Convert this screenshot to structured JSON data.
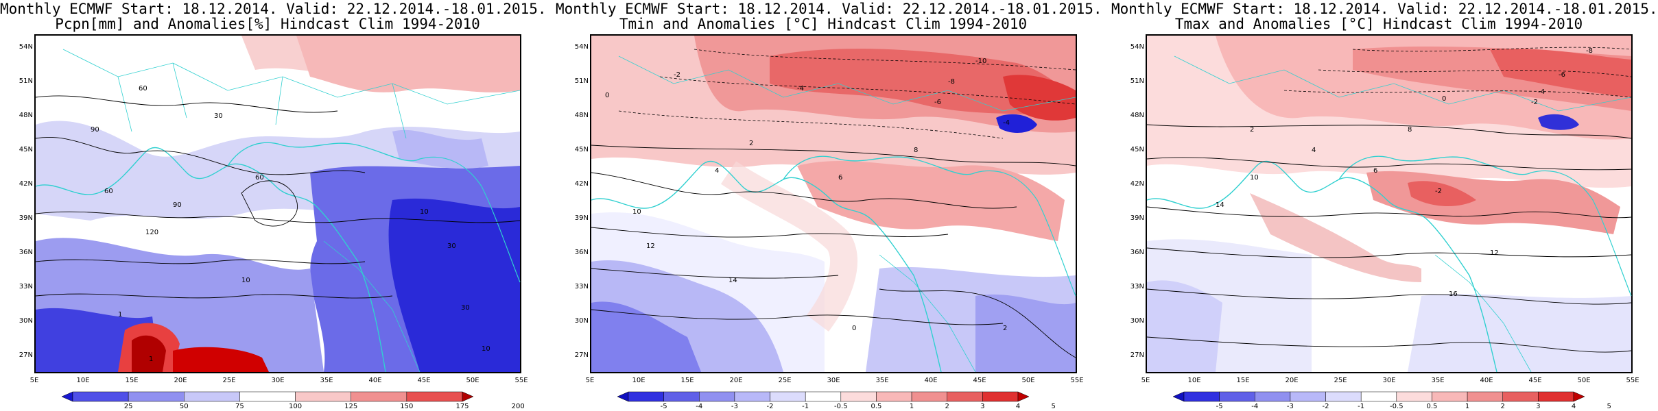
{
  "panels": [
    {
      "title_line1": "Monthly ECMWF Start: 18.12.2014. Valid: 22.12.2014.-18.01.2015.",
      "title_line2": "Pcpn[mm] and Anomalies[%] Hindcast Clim 1994-2010",
      "variable": "precipitation",
      "colorbar_ticks": [
        "25",
        "50",
        "75",
        "100",
        "125",
        "150",
        "175",
        "200"
      ],
      "colorbar_colors": [
        "#1818d0",
        "#5050e8",
        "#9090f0",
        "#c8c8f8",
        "#ffffff",
        "#f8c8c8",
        "#f09090",
        "#e85050",
        "#b00000"
      ],
      "contour_labels": [
        "60",
        "90",
        "30",
        "60",
        "90",
        "120",
        "60",
        "10",
        "30",
        "1",
        "10",
        "30",
        "10",
        "1"
      ]
    },
    {
      "title_line1": "Monthly ECMWF Start: 18.12.2014. Valid: 22.12.2014.-18.01.2015.",
      "title_line2": "Tmin and Anomalies [°C] Hindcast Clim 1994-2010",
      "variable": "tmin",
      "colorbar_ticks": [
        "-5",
        "-4",
        "-3",
        "-2",
        "-1",
        "-0.5",
        "0.5",
        "1",
        "2",
        "3",
        "4",
        "5"
      ],
      "colorbar_colors": [
        "#1010c0",
        "#3030e0",
        "#6060e8",
        "#9090f0",
        "#b8b8f8",
        "#dcdcfc",
        "#ffffff",
        "#fcdcdc",
        "#f8b8b8",
        "#f09090",
        "#e86060",
        "#e03030",
        "#c00000"
      ],
      "contour_labels": [
        "-10",
        "-8",
        "-6",
        "-4",
        "-2",
        "0",
        "2",
        "4",
        "6",
        "8",
        "10",
        "12",
        "14",
        "-4",
        "0",
        "2"
      ]
    },
    {
      "title_line1": "Monthly ECMWF Start: 18.12.2014. Valid: 22.12.2014.-18.01.2015.",
      "title_line2": "Tmax and Anomalies [°C] Hindcast Clim 1994-2010",
      "variable": "tmax",
      "colorbar_ticks": [
        "-5",
        "-4",
        "-3",
        "-2",
        "-1",
        "-0.5",
        "0.5",
        "1",
        "2",
        "3",
        "4",
        "5"
      ],
      "colorbar_colors": [
        "#1010c0",
        "#3030e0",
        "#6060e8",
        "#9090f0",
        "#b8b8f8",
        "#dcdcfc",
        "#ffffff",
        "#fcdcdc",
        "#f8b8b8",
        "#f09090",
        "#e86060",
        "#e03030",
        "#c00000"
      ],
      "contour_labels": [
        "-8",
        "-6",
        "-4",
        "-2",
        "0",
        "2",
        "4",
        "6",
        "8",
        "10",
        "12",
        "14",
        "16",
        "-2"
      ]
    }
  ],
  "lat_ticks": [
    "54N",
    "51N",
    "48N",
    "45N",
    "42N",
    "39N",
    "36N",
    "33N",
    "30N",
    "27N"
  ],
  "lon_ticks": [
    "5E",
    "10E",
    "15E",
    "20E",
    "25E",
    "30E",
    "35E",
    "40E",
    "45E",
    "50E",
    "55E"
  ]
}
